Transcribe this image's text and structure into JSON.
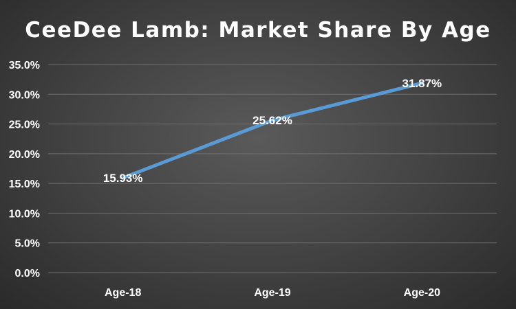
{
  "chart_data": {
    "type": "line",
    "title": "CeeDee Lamb: Market Share By Age",
    "xlabel": "",
    "ylabel": "",
    "categories": [
      "Age-18",
      "Age-19",
      "Age-20"
    ],
    "series": [
      {
        "values": [
          15.93,
          25.62,
          31.87
        ],
        "color": "#5b9bd5"
      }
    ],
    "data_labels": [
      "15.93%",
      "25.62%",
      "31.87%"
    ],
    "y_ticks": [
      "0.0%",
      "5.0%",
      "10.0%",
      "15.0%",
      "20.0%",
      "25.0%",
      "30.0%",
      "35.0%"
    ],
    "ylim": [
      0,
      35
    ],
    "grid": true,
    "legend": "none"
  }
}
